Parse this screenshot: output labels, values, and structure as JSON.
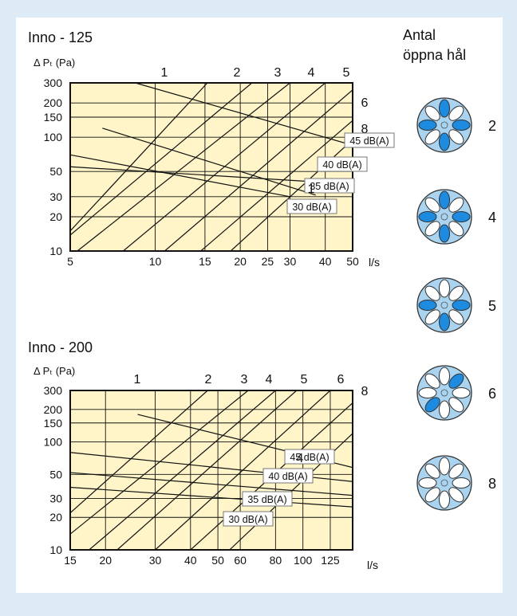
{
  "colors": {
    "frame": "#dcebf6",
    "panel": "#ffffff",
    "plot_fill": "#fff5c8",
    "line": "#111111",
    "valve_fill": "#a9d3ef",
    "hole_open": "#1c8be0",
    "hole_closed": "#ffffff"
  },
  "legend": {
    "title_line1": "Antal",
    "title_line2": "öppna hål",
    "icons": [
      {
        "label": "2",
        "open_holes": [
          0,
          2,
          4,
          6
        ]
      },
      {
        "label": "4",
        "open_holes": [
          0,
          2,
          4,
          6
        ]
      },
      {
        "label": "5",
        "open_holes": [
          2,
          4,
          6
        ]
      },
      {
        "label": "6",
        "open_holes": [
          1,
          5
        ]
      },
      {
        "label": "8",
        "open_holes": []
      }
    ]
  },
  "chart_data": [
    {
      "type": "line",
      "title": "Inno - 125",
      "ylabel": "Δ Pₜ (Pa)",
      "xlabel": "l/s",
      "x_scale": "log",
      "y_scale": "log",
      "xlim": [
        5,
        50
      ],
      "ylim": [
        10,
        300
      ],
      "x_ticks": [
        "5",
        "10",
        "15",
        "20",
        "25",
        "30",
        "40",
        "50"
      ],
      "x_tick_values": [
        5,
        10,
        15,
        20,
        25,
        30,
        40,
        50
      ],
      "y_ticks": [
        "10",
        "20",
        "30",
        "50",
        "100",
        "150",
        "200",
        "300"
      ],
      "y_tick_values": [
        10,
        20,
        30,
        50,
        100,
        150,
        200,
        300
      ],
      "grid": true,
      "series": [
        {
          "name": "1",
          "x": [
            5,
            15.3
          ],
          "y": [
            15,
            300
          ]
        },
        {
          "name": "2",
          "x": [
            5,
            22
          ],
          "y": [
            13.8,
            300
          ]
        },
        {
          "name": "3",
          "x": [
            5.3,
            30
          ],
          "y": [
            10,
            300
          ]
        },
        {
          "name": "4",
          "x": [
            7.7,
            40
          ],
          "y": [
            10,
            300
          ]
        },
        {
          "name": "5",
          "x": [
            10.8,
            50
          ],
          "y": [
            10,
            260
          ]
        },
        {
          "name": "6",
          "x": [
            14.5,
            50
          ],
          "y": [
            10,
            140
          ]
        },
        {
          "name": "8",
          "x": [
            18.5,
            50
          ],
          "y": [
            10,
            95
          ]
        }
      ],
      "curves": [
        {
          "label": "45 dB(A)",
          "x": [
            8.5,
            50
          ],
          "y": [
            300,
            85
          ]
        },
        {
          "label": "40 dB(A)",
          "x": [
            5,
            40
          ],
          "y": [
            55,
            40
          ]
        },
        {
          "label": "35 dB(A)",
          "x": [
            6.5,
            37
          ],
          "y": [
            120,
            31
          ]
        },
        {
          "label": "30 dB(A)",
          "x": [
            5,
            30
          ],
          "y": [
            70,
            30
          ]
        }
      ],
      "series_labels": [
        "1",
        "2",
        "3",
        "4",
        "5",
        "6",
        "8"
      ],
      "annotations": [
        "1"
      ]
    },
    {
      "type": "line",
      "title": "Inno - 200",
      "ylabel": "Δ Pₜ (Pa)",
      "xlabel": "l/s",
      "x_scale": "log",
      "y_scale": "log",
      "xlim": [
        15,
        150
      ],
      "ylim": [
        10,
        300
      ],
      "x_ticks": [
        "15",
        "20",
        "30",
        "40",
        "50",
        "60",
        "80",
        "100",
        "125"
      ],
      "x_tick_values": [
        15,
        20,
        30,
        40,
        50,
        60,
        80,
        100,
        125
      ],
      "y_ticks": [
        "10",
        "20",
        "30",
        "50",
        "100",
        "150",
        "200",
        "300"
      ],
      "y_tick_values": [
        10,
        20,
        30,
        50,
        100,
        150,
        200,
        300
      ],
      "grid": true,
      "series": [
        {
          "name": "1",
          "x": [
            15,
            46
          ],
          "y": [
            22,
            300
          ]
        },
        {
          "name": "2",
          "x": [
            15,
            64
          ],
          "y": [
            14,
            300
          ]
        },
        {
          "name": "3",
          "x": [
            17.5,
            80
          ],
          "y": [
            10,
            300
          ]
        },
        {
          "name": "4",
          "x": [
            22,
            95
          ],
          "y": [
            10,
            300
          ]
        },
        {
          "name": "5",
          "x": [
            30,
            125
          ],
          "y": [
            10,
            300
          ]
        },
        {
          "name": "6",
          "x": [
            40,
            150
          ],
          "y": [
            10,
            230
          ]
        },
        {
          "name": "8",
          "x": [
            55,
            150
          ],
          "y": [
            10,
            120
          ]
        }
      ],
      "curves": [
        {
          "label": "45 dB(A)",
          "x": [
            26,
            150
          ],
          "y": [
            180,
            58
          ]
        },
        {
          "label": "40 dB(A)",
          "x": [
            15,
            150
          ],
          "y": [
            80,
            43
          ]
        },
        {
          "label": "35 dB(A)",
          "x": [
            15,
            150
          ],
          "y": [
            52,
            32
          ]
        },
        {
          "label": "30 dB(A)",
          "x": [
            15,
            150
          ],
          "y": [
            38,
            25
          ]
        }
      ],
      "series_labels": [
        "1",
        "2",
        "3",
        "4",
        "5",
        "6",
        "8"
      ],
      "annotations": [
        "4"
      ]
    }
  ]
}
